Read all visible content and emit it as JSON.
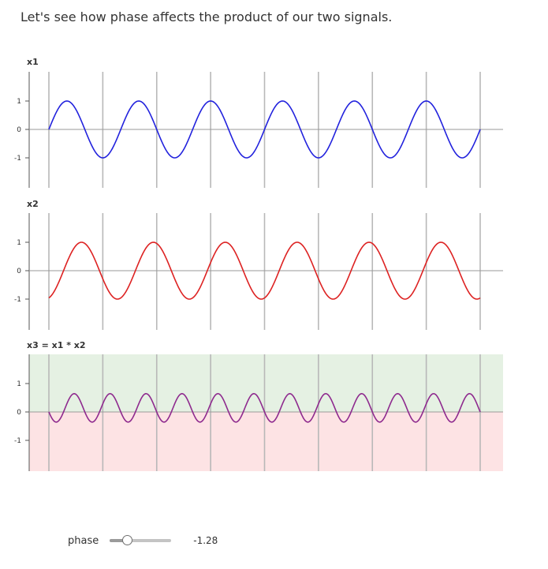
{
  "intro": "Let's see how phase affects the product of our two signals.",
  "controls": {
    "phase_label": "phase",
    "phase_value": "-1.28",
    "phase_min": -3.14,
    "phase_max": 3.14
  },
  "colors": {
    "x1": "#2222dd",
    "x2": "#dd2222",
    "x3": "#8e2a8e",
    "positive_region": "#e5f1e3",
    "negative_region": "#fde3e4",
    "gridline": "#b8b8b8",
    "axis": "#555555"
  },
  "chart_data": [
    {
      "type": "line",
      "title": "x1",
      "series": [
        {
          "cycles": 6,
          "amplitude": 1,
          "phase": 0
        }
      ],
      "x_range": [
        0,
        1
      ],
      "ylim": [
        -1,
        1
      ],
      "yticks": [
        1,
        0,
        -1
      ],
      "ytick_labels": [
        "1",
        "0",
        "-1"
      ],
      "vertical_gridlines": 9,
      "color": "#2222dd"
    },
    {
      "type": "line",
      "title": "x2",
      "series": [
        {
          "cycles": 6,
          "amplitude": 1,
          "phase": -1.28
        }
      ],
      "x_range": [
        0,
        1
      ],
      "ylim": [
        -1,
        1
      ],
      "yticks": [
        1,
        0,
        -1
      ],
      "ytick_labels": [
        "1",
        "0",
        "-1"
      ],
      "vertical_gridlines": 9,
      "color": "#dd2222"
    },
    {
      "type": "area",
      "title": "x3 = x1 * x2",
      "series": [
        {
          "formula": "x1 * x2"
        }
      ],
      "x_range": [
        0,
        1
      ],
      "ylim": [
        -1,
        1
      ],
      "yticks": [
        1,
        0,
        -1
      ],
      "ytick_labels": [
        "1",
        "0",
        "-1"
      ],
      "vertical_gridlines": 9,
      "color": "#8e2a8e",
      "regions": [
        "positive",
        "negative"
      ]
    }
  ]
}
